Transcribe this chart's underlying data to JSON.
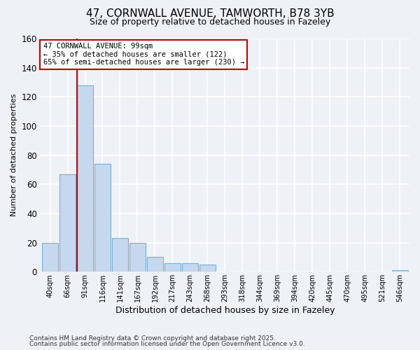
{
  "title": "47, CORNWALL AVENUE, TAMWORTH, B78 3YB",
  "subtitle": "Size of property relative to detached houses in Fazeley",
  "xlabel": "Distribution of detached houses by size in Fazeley",
  "ylabel": "Number of detached properties",
  "bar_color": "#c5d8ee",
  "bar_edge_color": "#7aafd4",
  "background_color": "#eef2f7",
  "grid_color": "#ffffff",
  "tick_labels": [
    "40sqm",
    "66sqm",
    "91sqm",
    "116sqm",
    "141sqm",
    "167sqm",
    "192sqm",
    "217sqm",
    "243sqm",
    "268sqm",
    "293sqm",
    "318sqm",
    "344sqm",
    "369sqm",
    "394sqm",
    "420sqm",
    "445sqm",
    "470sqm",
    "495sqm",
    "521sqm",
    "546sqm"
  ],
  "bar_values": [
    20,
    67,
    128,
    74,
    23,
    20,
    10,
    6,
    6,
    5,
    0,
    0,
    0,
    0,
    0,
    0,
    0,
    0,
    0,
    0,
    1
  ],
  "vline_color": "#cc0000",
  "annotation_text": "47 CORNWALL AVENUE: 99sqm\n← 35% of detached houses are smaller (122)\n65% of semi-detached houses are larger (230) →",
  "annotation_box_color": "#ffffff",
  "annotation_box_edge_color": "#cc0000",
  "ylim": [
    0,
    160
  ],
  "yticks": [
    0,
    20,
    40,
    60,
    80,
    100,
    120,
    140,
    160
  ],
  "footnote1": "Contains HM Land Registry data © Crown copyright and database right 2025.",
  "footnote2": "Contains public sector information licensed under the Open Government Licence v3.0."
}
